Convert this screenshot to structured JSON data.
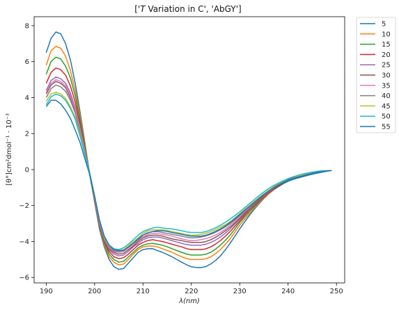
{
  "chart_data": {
    "type": "line",
    "title_parts": [
      "['",
      "T",
      " Variation in C', 'AbGY']"
    ],
    "xlabel": "λ(nm)",
    "ylabel": "[θ°]cm²dmol⁻¹ · 10⁻³",
    "xlim": [
      187.5,
      251.7
    ],
    "ylim": [
      -6.3,
      8.5
    ],
    "xticks": [
      190,
      200,
      210,
      220,
      230,
      240,
      250
    ],
    "yticks": [
      -6,
      -4,
      -2,
      0,
      2,
      4,
      6,
      8
    ],
    "grid": false,
    "legend_position": "outside-top-right",
    "x": [
      190,
      191,
      192,
      193,
      194,
      195,
      196,
      197,
      198,
      199,
      200,
      201,
      202,
      203,
      204,
      205,
      206,
      207,
      208,
      209,
      210,
      211,
      212,
      213,
      214,
      215,
      216,
      217,
      218,
      219,
      220,
      221,
      222,
      223,
      224,
      225,
      226,
      227,
      228,
      229,
      230,
      231,
      232,
      233,
      234,
      235,
      236,
      237,
      238,
      239,
      240,
      241,
      242,
      243,
      244,
      245,
      246,
      247,
      248,
      249
    ],
    "anchors": {
      "x": [
        190,
        191,
        192,
        193,
        194,
        195,
        196,
        197,
        198,
        199,
        200,
        201,
        202,
        203,
        204,
        205,
        206,
        207,
        208,
        209,
        210,
        212,
        213,
        214,
        216,
        218,
        220,
        222,
        224,
        226,
        228,
        230,
        232,
        234,
        236,
        238,
        240,
        243,
        246,
        249
      ],
      "series": [
        {
          "name": "5",
          "color": "#1f77b4",
          "y": [
            6.5,
            7.3,
            7.65,
            7.55,
            7.0,
            6.1,
            4.8,
            3.2,
            1.5,
            -0.3,
            -1.8,
            -3.3,
            -4.3,
            -5.0,
            -5.4,
            -5.55,
            -5.5,
            -5.2,
            -4.9,
            -4.6,
            -4.45,
            -4.4,
            -4.5,
            -4.6,
            -4.85,
            -5.15,
            -5.4,
            -5.45,
            -5.25,
            -4.8,
            -4.1,
            -3.3,
            -2.55,
            -1.9,
            -1.35,
            -0.95,
            -0.65,
            -0.4,
            -0.2,
            -0.05
          ]
        },
        {
          "name": "10",
          "color": "#ff7f0e",
          "y": [
            5.8,
            6.6,
            6.85,
            6.75,
            6.3,
            5.5,
            4.4,
            3.0,
            1.4,
            -0.25,
            -1.75,
            -3.2,
            -4.2,
            -4.85,
            -5.15,
            -5.3,
            -5.25,
            -5.0,
            -4.7,
            -4.45,
            -4.3,
            -4.25,
            -4.3,
            -4.4,
            -4.6,
            -4.85,
            -5.0,
            -5.0,
            -4.85,
            -4.45,
            -3.85,
            -3.1,
            -2.45,
            -1.85,
            -1.35,
            -0.9,
            -0.6,
            -0.35,
            -0.15,
            -0.05
          ]
        },
        {
          "name": "15",
          "color": "#2ca02c",
          "y": [
            5.3,
            6.0,
            6.25,
            6.15,
            5.75,
            5.1,
            4.1,
            2.8,
            1.3,
            -0.25,
            -1.7,
            -3.15,
            -4.1,
            -4.7,
            -5.0,
            -5.15,
            -5.1,
            -4.85,
            -4.6,
            -4.35,
            -4.2,
            -4.1,
            -4.15,
            -4.2,
            -4.4,
            -4.6,
            -4.75,
            -4.75,
            -4.6,
            -4.2,
            -3.65,
            -2.95,
            -2.35,
            -1.8,
            -1.3,
            -0.9,
            -0.6,
            -0.35,
            -0.15,
            -0.05
          ]
        },
        {
          "name": "20",
          "color": "#d62728",
          "y": [
            4.8,
            5.4,
            5.65,
            5.55,
            5.25,
            4.65,
            3.75,
            2.55,
            1.2,
            -0.2,
            -1.65,
            -3.1,
            -4.0,
            -4.55,
            -4.85,
            -4.95,
            -4.9,
            -4.7,
            -4.45,
            -4.2,
            -4.05,
            -3.9,
            -3.95,
            -4.0,
            -4.15,
            -4.3,
            -4.45,
            -4.45,
            -4.3,
            -3.95,
            -3.45,
            -2.85,
            -2.25,
            -1.75,
            -1.3,
            -0.9,
            -0.6,
            -0.35,
            -0.15,
            -0.05
          ]
        },
        {
          "name": "25",
          "color": "#9467bd",
          "y": [
            4.4,
            4.95,
            5.15,
            5.05,
            4.8,
            4.25,
            3.45,
            2.35,
            1.1,
            -0.2,
            -1.6,
            -3.05,
            -3.95,
            -4.45,
            -4.7,
            -4.8,
            -4.75,
            -4.55,
            -4.3,
            -4.1,
            -3.9,
            -3.75,
            -3.75,
            -3.8,
            -3.95,
            -4.1,
            -4.2,
            -4.2,
            -4.05,
            -3.75,
            -3.3,
            -2.75,
            -2.2,
            -1.7,
            -1.25,
            -0.85,
            -0.6,
            -0.35,
            -0.15,
            -0.05
          ]
        },
        {
          "name": "30",
          "color": "#8c564b",
          "y": [
            4.2,
            4.7,
            4.9,
            4.8,
            4.55,
            4.0,
            3.25,
            2.2,
            1.0,
            -0.2,
            -1.55,
            -3.0,
            -3.9,
            -4.4,
            -4.6,
            -4.7,
            -4.65,
            -4.45,
            -4.25,
            -4.0,
            -3.8,
            -3.65,
            -3.65,
            -3.7,
            -3.85,
            -3.95,
            -4.05,
            -4.05,
            -3.9,
            -3.6,
            -3.2,
            -2.7,
            -2.15,
            -1.65,
            -1.2,
            -0.85,
            -0.55,
            -0.3,
            -0.15,
            -0.05
          ]
        },
        {
          "name": "35",
          "color": "#e377c2",
          "y": [
            4.3,
            4.8,
            5.0,
            4.9,
            4.65,
            4.1,
            3.35,
            2.25,
            1.05,
            -0.2,
            -1.55,
            -2.95,
            -3.85,
            -4.35,
            -4.55,
            -4.6,
            -4.55,
            -4.35,
            -4.15,
            -3.95,
            -3.75,
            -3.55,
            -3.55,
            -3.6,
            -3.7,
            -3.85,
            -3.95,
            -3.9,
            -3.75,
            -3.5,
            -3.1,
            -2.6,
            -2.1,
            -1.6,
            -1.2,
            -0.85,
            -0.55,
            -0.3,
            -0.15,
            -0.05
          ]
        },
        {
          "name": "40",
          "color": "#7f7f7f",
          "y": [
            4.0,
            4.5,
            4.7,
            4.6,
            4.35,
            3.85,
            3.15,
            2.1,
            1.0,
            -0.2,
            -1.5,
            -2.9,
            -3.8,
            -4.3,
            -4.5,
            -4.55,
            -4.5,
            -4.3,
            -4.1,
            -3.9,
            -3.65,
            -3.45,
            -3.45,
            -3.5,
            -3.6,
            -3.7,
            -3.8,
            -3.75,
            -3.6,
            -3.35,
            -3.0,
            -2.55,
            -2.05,
            -1.6,
            -1.15,
            -0.8,
            -0.55,
            -0.3,
            -0.15,
            -0.05
          ]
        },
        {
          "name": "45",
          "color": "#bcbd22",
          "y": [
            3.8,
            4.2,
            4.3,
            4.2,
            3.95,
            3.5,
            2.9,
            1.95,
            0.9,
            -0.2,
            -1.5,
            -2.85,
            -3.75,
            -4.25,
            -4.45,
            -4.5,
            -4.45,
            -4.25,
            -4.0,
            -3.8,
            -3.55,
            -3.35,
            -3.35,
            -3.35,
            -3.45,
            -3.55,
            -3.65,
            -3.6,
            -3.45,
            -3.2,
            -2.9,
            -2.45,
            -2.0,
            -1.55,
            -1.15,
            -0.8,
            -0.5,
            -0.3,
            -0.1,
            -0.05
          ]
        },
        {
          "name": "50",
          "color": "#17becf",
          "y": [
            3.6,
            4.05,
            4.2,
            4.1,
            3.85,
            3.4,
            2.8,
            1.85,
            0.85,
            -0.2,
            -1.45,
            -2.8,
            -3.7,
            -4.2,
            -4.4,
            -4.45,
            -4.35,
            -4.15,
            -3.9,
            -3.65,
            -3.45,
            -3.25,
            -3.2,
            -3.25,
            -3.3,
            -3.4,
            -3.5,
            -3.5,
            -3.35,
            -3.1,
            -2.75,
            -2.35,
            -1.9,
            -1.45,
            -1.05,
            -0.75,
            -0.5,
            -0.25,
            -0.1,
            -0.05
          ]
        },
        {
          "name": "55",
          "color": "#1f77b4",
          "y": [
            3.5,
            3.85,
            3.85,
            3.65,
            3.3,
            2.85,
            2.2,
            1.5,
            0.6,
            -0.3,
            -1.45,
            -2.8,
            -3.7,
            -4.2,
            -4.45,
            -4.5,
            -4.5,
            -4.3,
            -4.1,
            -3.85,
            -3.65,
            -3.45,
            -3.4,
            -3.4,
            -3.5,
            -3.6,
            -3.7,
            -3.7,
            -3.55,
            -3.3,
            -2.95,
            -2.5,
            -2.05,
            -1.6,
            -1.2,
            -0.85,
            -0.6,
            -0.35,
            -0.15,
            -0.05
          ]
        }
      ]
    }
  }
}
